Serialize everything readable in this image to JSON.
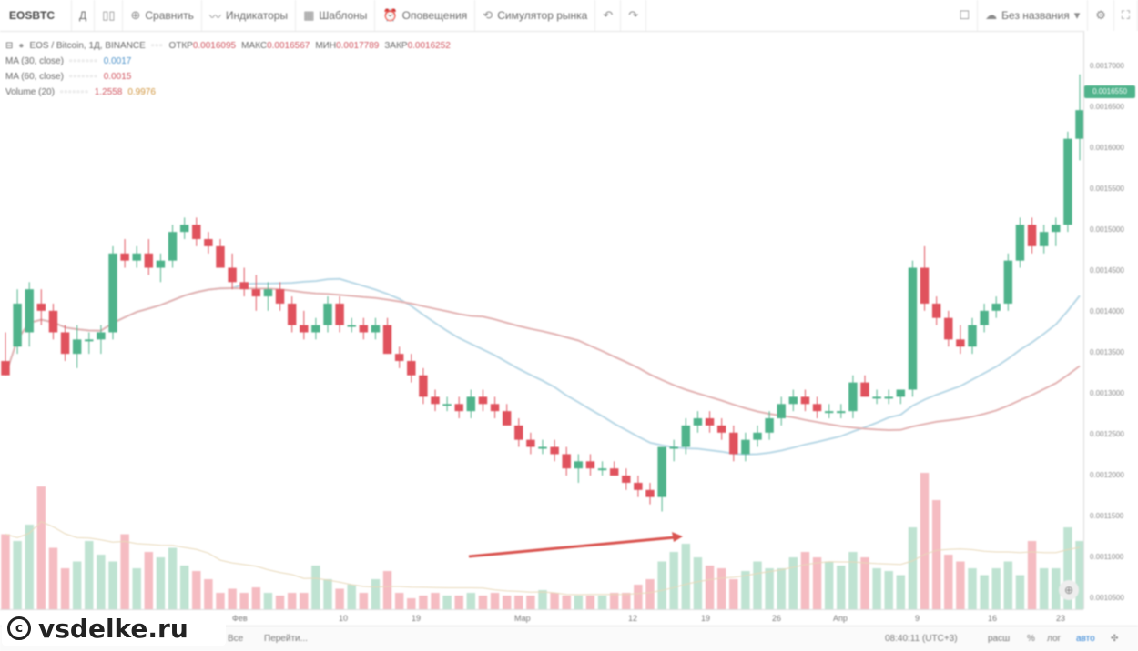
{
  "toolbar": {
    "symbol": "EOSBTC",
    "interval": "Д",
    "compare": "Сравнить",
    "indicators": "Индикаторы",
    "templates": "Шаблоны",
    "alerts": "Оповещения",
    "simulator": "Симулятор рынка",
    "layout_name": "Без названия"
  },
  "legend": {
    "title": "EOS / Bitcoin, 1Д, BINANCE",
    "open_label": "ОТКР",
    "open": "0.0016095",
    "high_label": "МАКС",
    "high": "0.0016567",
    "low_label": "МИН",
    "low": "0.0017789",
    "close_label": "ЗАКР",
    "close": "0.0016252",
    "ma1_label": "MA (30, close)",
    "ma1_value": "0.0017",
    "ma2_label": "MA (60, close)",
    "ma2_value": "0.0015",
    "vol_label": "Volume (20)",
    "vol_value1": "1.2558",
    "vol_value2": "0.9976"
  },
  "price_axis": {
    "current_price": "0.0016550",
    "labels": [
      "0.0017000",
      "0.0016500",
      "0.0016000",
      "0.0015500",
      "0.0015000",
      "0.0014500",
      "0.0014000",
      "0.0013500",
      "0.0013000",
      "0.0012500",
      "0.0012000",
      "0.0011500",
      "0.0011000",
      "0.0010500"
    ]
  },
  "time_axis": {
    "labels": [
      "Фев",
      "10",
      "19",
      "Мар",
      "12",
      "19",
      "26",
      "Апр",
      "9",
      "16",
      "23"
    ]
  },
  "bottom_bar": {
    "go_to": "Перейти...",
    "all": "Все",
    "time": "08:40:11 (UTC+3)",
    "percent": "%",
    "log": "лог",
    "auto": "авто",
    "ext": "расш"
  },
  "watermark": "vsdelke.ru",
  "colors": {
    "up": "#4fb38b",
    "down": "#e0525d",
    "arrow": "#d9534f",
    "ma1": "#a9cfe0",
    "ma2": "#e0a8a8"
  },
  "chart_data": {
    "type": "candlestick",
    "symbol": "EOS / Bitcoin",
    "interval": "1D",
    "exchange": "BINANCE",
    "ohlc": [
      [
        0.0013,
        0.00134,
        0.00128,
        0.00128
      ],
      [
        0.00132,
        0.0014,
        0.00131,
        0.00138
      ],
      [
        0.00134,
        0.00141,
        0.00132,
        0.0014
      ],
      [
        0.00138,
        0.0014,
        0.00135,
        0.00137
      ],
      [
        0.00137,
        0.00138,
        0.00133,
        0.00134
      ],
      [
        0.00134,
        0.00135,
        0.0013,
        0.00131
      ],
      [
        0.00131,
        0.00135,
        0.00129,
        0.00133
      ],
      [
        0.00133,
        0.00134,
        0.00131,
        0.00133
      ],
      [
        0.00133,
        0.00135,
        0.00131,
        0.00134
      ],
      [
        0.00134,
        0.00146,
        0.00133,
        0.00145
      ],
      [
        0.00145,
        0.00147,
        0.00143,
        0.00144
      ],
      [
        0.00144,
        0.00146,
        0.00143,
        0.00145
      ],
      [
        0.00145,
        0.00147,
        0.00142,
        0.00143
      ],
      [
        0.00143,
        0.00145,
        0.00141,
        0.00144
      ],
      [
        0.00144,
        0.00149,
        0.00143,
        0.00148
      ],
      [
        0.00148,
        0.0015,
        0.00147,
        0.00149
      ],
      [
        0.00149,
        0.0015,
        0.00146,
        0.00147
      ],
      [
        0.00147,
        0.00148,
        0.00145,
        0.00146
      ],
      [
        0.00146,
        0.00147,
        0.00143,
        0.00143
      ],
      [
        0.00143,
        0.00145,
        0.0014,
        0.00141
      ],
      [
        0.00141,
        0.00143,
        0.00139,
        0.0014
      ],
      [
        0.0014,
        0.00142,
        0.00137,
        0.00139
      ],
      [
        0.00139,
        0.00141,
        0.00137,
        0.0014
      ],
      [
        0.0014,
        0.00141,
        0.00137,
        0.00138
      ],
      [
        0.00138,
        0.00139,
        0.00134,
        0.00135
      ],
      [
        0.00135,
        0.00137,
        0.00133,
        0.00134
      ],
      [
        0.00134,
        0.00136,
        0.00133,
        0.00135
      ],
      [
        0.00135,
        0.00139,
        0.00134,
        0.00138
      ],
      [
        0.00138,
        0.00139,
        0.00134,
        0.00135
      ],
      [
        0.00135,
        0.00136,
        0.00134,
        0.00135
      ],
      [
        0.00135,
        0.00136,
        0.00133,
        0.00134
      ],
      [
        0.00134,
        0.00136,
        0.00133,
        0.00135
      ],
      [
        0.00135,
        0.00136,
        0.00131,
        0.00131
      ],
      [
        0.00131,
        0.00132,
        0.00129,
        0.0013
      ],
      [
        0.0013,
        0.00131,
        0.00127,
        0.00128
      ],
      [
        0.00128,
        0.00129,
        0.00124,
        0.00125
      ],
      [
        0.00125,
        0.00126,
        0.00123,
        0.00124
      ],
      [
        0.00124,
        0.00125,
        0.00123,
        0.00124
      ],
      [
        0.00124,
        0.00125,
        0.00122,
        0.00123
      ],
      [
        0.00123,
        0.00126,
        0.00122,
        0.00125
      ],
      [
        0.00125,
        0.00126,
        0.00123,
        0.00124
      ],
      [
        0.00124,
        0.00125,
        0.00122,
        0.00123
      ],
      [
        0.00123,
        0.00124,
        0.00121,
        0.00121
      ],
      [
        0.00121,
        0.00122,
        0.00118,
        0.00119
      ],
      [
        0.00119,
        0.0012,
        0.00117,
        0.00118
      ],
      [
        0.00118,
        0.00119,
        0.00117,
        0.00118
      ],
      [
        0.00118,
        0.00119,
        0.00116,
        0.00117
      ],
      [
        0.00117,
        0.00118,
        0.00114,
        0.00115
      ],
      [
        0.00115,
        0.00117,
        0.00113,
        0.00116
      ],
      [
        0.00116,
        0.00117,
        0.00114,
        0.00115
      ],
      [
        0.00115,
        0.00116,
        0.00114,
        0.00115
      ],
      [
        0.00115,
        0.00116,
        0.00114,
        0.00114
      ],
      [
        0.00114,
        0.00115,
        0.00112,
        0.00113
      ],
      [
        0.00113,
        0.00114,
        0.00111,
        0.00112
      ],
      [
        0.00112,
        0.00113,
        0.0011,
        0.00111
      ],
      [
        0.00111,
        0.00118,
        0.00109,
        0.00118
      ],
      [
        0.00118,
        0.00119,
        0.00116,
        0.00118
      ],
      [
        0.00118,
        0.00122,
        0.00117,
        0.00121
      ],
      [
        0.00121,
        0.00123,
        0.0012,
        0.00122
      ],
      [
        0.00122,
        0.00123,
        0.0012,
        0.00121
      ],
      [
        0.00121,
        0.00122,
        0.00119,
        0.0012
      ],
      [
        0.0012,
        0.00121,
        0.00116,
        0.00117
      ],
      [
        0.00117,
        0.0012,
        0.00116,
        0.00119
      ],
      [
        0.00119,
        0.00121,
        0.00118,
        0.0012
      ],
      [
        0.0012,
        0.00123,
        0.00119,
        0.00122
      ],
      [
        0.00122,
        0.00125,
        0.00121,
        0.00124
      ],
      [
        0.00124,
        0.00126,
        0.00123,
        0.00125
      ],
      [
        0.00125,
        0.00126,
        0.00123,
        0.00124
      ],
      [
        0.00124,
        0.00125,
        0.00122,
        0.00123
      ],
      [
        0.00123,
        0.00124,
        0.00122,
        0.00123
      ],
      [
        0.00123,
        0.00124,
        0.00122,
        0.00123
      ],
      [
        0.00123,
        0.00128,
        0.00122,
        0.00127
      ],
      [
        0.00127,
        0.00128,
        0.00125,
        0.00125
      ],
      [
        0.00125,
        0.00126,
        0.00124,
        0.00125
      ],
      [
        0.00125,
        0.00126,
        0.00124,
        0.00125
      ],
      [
        0.00125,
        0.00126,
        0.00124,
        0.00126
      ],
      [
        0.00126,
        0.00144,
        0.00125,
        0.00143
      ],
      [
        0.00143,
        0.00146,
        0.00137,
        0.00138
      ],
      [
        0.00138,
        0.00139,
        0.00135,
        0.00136
      ],
      [
        0.00136,
        0.00137,
        0.00132,
        0.00133
      ],
      [
        0.00133,
        0.00135,
        0.00131,
        0.00132
      ],
      [
        0.00132,
        0.00136,
        0.00131,
        0.00135
      ],
      [
        0.00135,
        0.00138,
        0.00134,
        0.00137
      ],
      [
        0.00137,
        0.00139,
        0.00136,
        0.00138
      ],
      [
        0.00138,
        0.00145,
        0.00137,
        0.00144
      ],
      [
        0.00144,
        0.0015,
        0.00143,
        0.00149
      ],
      [
        0.00149,
        0.0015,
        0.00145,
        0.00146
      ],
      [
        0.00146,
        0.00149,
        0.00145,
        0.00148
      ],
      [
        0.00148,
        0.0015,
        0.00146,
        0.00149
      ],
      [
        0.00149,
        0.00162,
        0.00148,
        0.00161
      ],
      [
        0.00161,
        0.0017,
        0.00158,
        0.00165
      ]
    ],
    "volume_relative": [
      0.55,
      0.5,
      0.62,
      0.9,
      0.45,
      0.3,
      0.35,
      0.5,
      0.4,
      0.35,
      0.55,
      0.3,
      0.42,
      0.38,
      0.45,
      0.32,
      0.28,
      0.22,
      0.12,
      0.15,
      0.12,
      0.16,
      0.12,
      0.1,
      0.12,
      0.12,
      0.32,
      0.22,
      0.15,
      0.18,
      0.12,
      0.22,
      0.28,
      0.12,
      0.08,
      0.1,
      0.12,
      0.1,
      0.1,
      0.12,
      0.1,
      0.12,
      0.1,
      0.1,
      0.1,
      0.14,
      0.12,
      0.1,
      0.1,
      0.1,
      0.1,
      0.12,
      0.12,
      0.18,
      0.22,
      0.35,
      0.42,
      0.48,
      0.38,
      0.32,
      0.3,
      0.22,
      0.28,
      0.35,
      0.3,
      0.3,
      0.38,
      0.42,
      0.38,
      0.35,
      0.32,
      0.42,
      0.38,
      0.3,
      0.28,
      0.25,
      0.6,
      1.0,
      0.8,
      0.4,
      0.35,
      0.3,
      0.25,
      0.3,
      0.35,
      0.25,
      0.5,
      0.3,
      0.3,
      0.6,
      0.5
    ],
    "annotation": "red arrow pointing to local low"
  }
}
